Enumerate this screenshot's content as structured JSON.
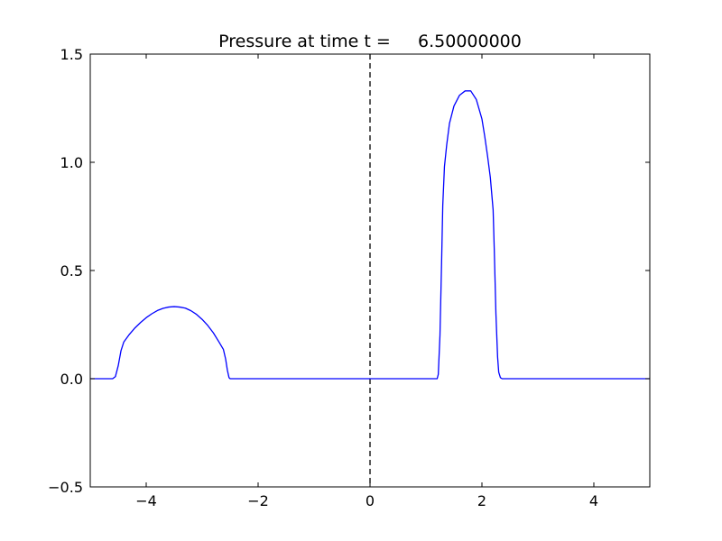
{
  "chart_data": {
    "type": "line",
    "title": "Pressure at time t =     6.50000000",
    "xlabel": "",
    "ylabel": "",
    "xlim": [
      -5,
      5
    ],
    "ylim": [
      -0.5,
      1.5
    ],
    "xticks": [
      -4,
      -2,
      0,
      2,
      4
    ],
    "xtick_labels": [
      "−4",
      "−2",
      "0",
      "2",
      "4"
    ],
    "yticks": [
      -0.5,
      0.0,
      0.5,
      1.0,
      1.5
    ],
    "ytick_labels": [
      "−0.5",
      "0.0",
      "0.5",
      "1.0",
      "1.5"
    ],
    "grid": false,
    "series": [
      {
        "color": "#0000ff",
        "style": "solid",
        "x": [
          -5.0,
          -4.7,
          -4.6,
          -4.55,
          -4.5,
          -4.45,
          -4.4,
          -4.3,
          -4.2,
          -4.1,
          -4.0,
          -3.9,
          -3.8,
          -3.7,
          -3.6,
          -3.5,
          -3.4,
          -3.3,
          -3.2,
          -3.1,
          -3.0,
          -2.9,
          -2.8,
          -2.7,
          -2.62,
          -2.58,
          -2.55,
          -2.52,
          -2.5,
          -2.4,
          -2.0,
          0.0,
          1.0,
          1.2,
          1.22,
          1.25,
          1.28,
          1.3,
          1.33,
          1.37,
          1.42,
          1.5,
          1.6,
          1.7,
          1.75,
          1.8,
          1.9,
          2.0,
          2.05,
          2.1,
          2.15,
          2.2,
          2.22,
          2.25,
          2.28,
          2.3,
          2.33,
          2.36,
          2.5,
          3.0,
          4.0,
          5.0
        ],
        "y": [
          0.0,
          0.0,
          0.0,
          0.01,
          0.06,
          0.13,
          0.17,
          0.205,
          0.235,
          0.26,
          0.282,
          0.3,
          0.315,
          0.325,
          0.331,
          0.333,
          0.331,
          0.326,
          0.314,
          0.297,
          0.274,
          0.246,
          0.212,
          0.17,
          0.135,
          0.09,
          0.04,
          0.005,
          0.0,
          0.0,
          0.0,
          0.0,
          0.0,
          0.0,
          0.02,
          0.2,
          0.55,
          0.8,
          0.98,
          1.08,
          1.18,
          1.26,
          1.31,
          1.33,
          1.33,
          1.33,
          1.29,
          1.2,
          1.12,
          1.03,
          0.93,
          0.78,
          0.6,
          0.3,
          0.1,
          0.03,
          0.005,
          0.0,
          0.0,
          0.0,
          0.0,
          0.0
        ]
      }
    ],
    "reference_lines": [
      {
        "x": 0,
        "color": "#000000",
        "style": "dashed"
      }
    ]
  }
}
